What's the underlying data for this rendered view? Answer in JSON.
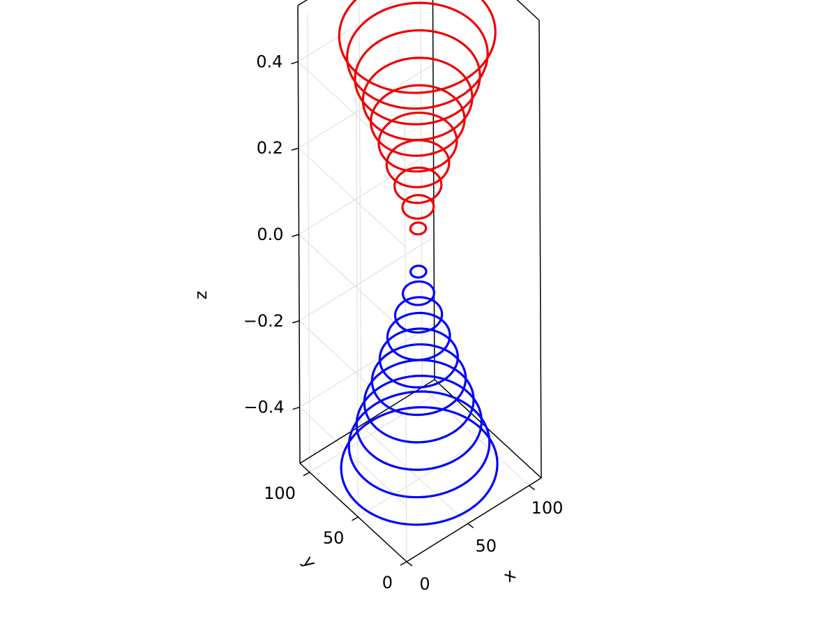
{
  "chart_data": {
    "type": "line3d",
    "title": "",
    "xlabel": "x",
    "ylabel": "y",
    "zlabel": "z",
    "xlim": [
      0,
      110
    ],
    "ylim": [
      0,
      110
    ],
    "zlim": [
      -0.53,
      0.53
    ],
    "x_ticks": [
      {
        "value": 0,
        "label": "0"
      },
      {
        "value": 50,
        "label": "50"
      },
      {
        "value": 100,
        "label": "100"
      }
    ],
    "y_ticks": [
      {
        "value": 0,
        "label": "0"
      },
      {
        "value": 50,
        "label": "50"
      },
      {
        "value": 100,
        "label": "100"
      }
    ],
    "z_ticks": [
      {
        "value": -0.4,
        "label": "−0.4"
      },
      {
        "value": -0.2,
        "label": "−0.2"
      },
      {
        "value": 0.0,
        "label": "0.0"
      },
      {
        "value": 0.2,
        "label": "0.2"
      },
      {
        "value": 0.4,
        "label": "0.4"
      }
    ],
    "grid": true,
    "legend": "none",
    "center": {
      "x": 50,
      "y": 50
    },
    "series": [
      {
        "color": "#0000ff",
        "rings": [
          {
            "z": -0.5,
            "r": 50
          },
          {
            "z": -0.45,
            "r": 45
          },
          {
            "z": -0.4,
            "r": 40
          },
          {
            "z": -0.35,
            "r": 35
          },
          {
            "z": -0.3,
            "r": 30
          },
          {
            "z": -0.25,
            "r": 25
          },
          {
            "z": -0.2,
            "r": 20
          },
          {
            "z": -0.15,
            "r": 15
          },
          {
            "z": -0.1,
            "r": 10
          },
          {
            "z": -0.05,
            "r": 5
          }
        ]
      },
      {
        "color": "#ee0000",
        "rings": [
          {
            "z": 0.05,
            "r": 5
          },
          {
            "z": 0.1,
            "r": 10
          },
          {
            "z": 0.15,
            "r": 15
          },
          {
            "z": 0.2,
            "r": 20
          },
          {
            "z": 0.25,
            "r": 25
          },
          {
            "z": 0.3,
            "r": 30
          },
          {
            "z": 0.35,
            "r": 35
          },
          {
            "z": 0.4,
            "r": 40
          },
          {
            "z": 0.45,
            "r": 45
          },
          {
            "z": 0.5,
            "r": 50
          }
        ]
      }
    ]
  }
}
